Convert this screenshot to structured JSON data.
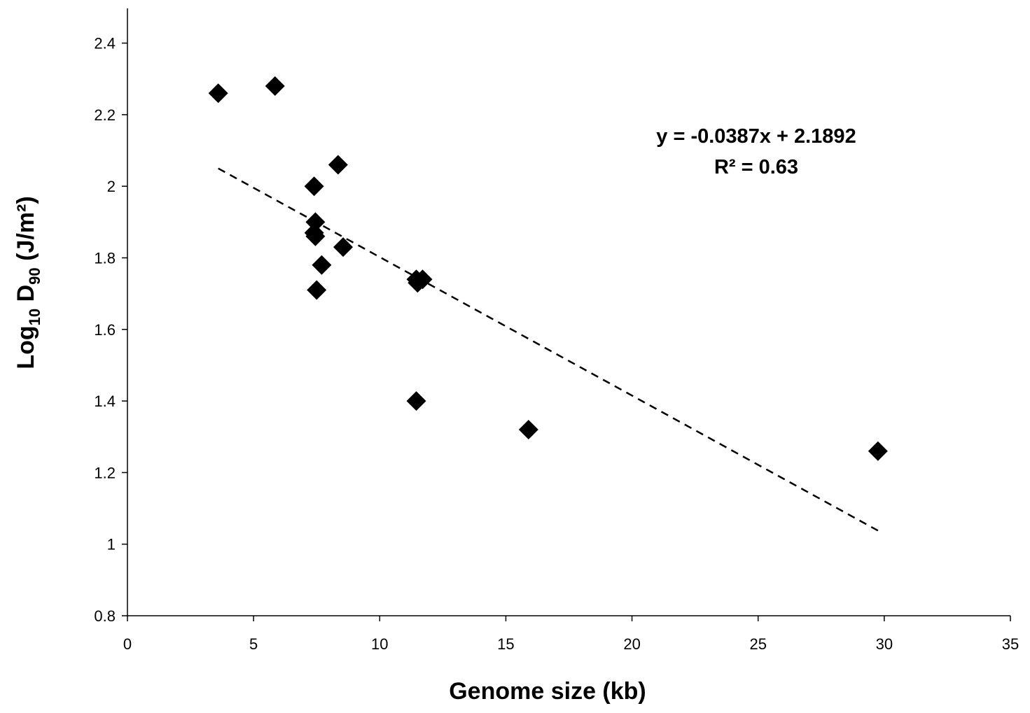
{
  "chart_data": {
    "type": "scatter",
    "xlabel": "Genome size (kb)",
    "ylabel": {
      "main": "Log",
      "main_sub": "10",
      "middle": " D",
      "middle_sub": "90",
      "unit": " (J/m²)"
    },
    "xlim": [
      0,
      35
    ],
    "ylim": [
      0.8,
      2.45
    ],
    "x_ticks": [
      0,
      5,
      10,
      15,
      20,
      25,
      30,
      35
    ],
    "x_tick_labels": [
      "0",
      "5",
      "10",
      "15",
      "20",
      "25",
      "30",
      "35"
    ],
    "y_ticks": [
      0.8,
      1.0,
      1.2,
      1.4,
      1.6,
      1.8,
      2.0,
      2.2,
      2.4
    ],
    "y_tick_labels": [
      "0.8",
      "1",
      "1.2",
      "1.4",
      "1.6",
      "1.8",
      "2",
      "2.2",
      "2.4"
    ],
    "grid": false,
    "marker": "diamond",
    "marker_color": "#000000",
    "series": [
      {
        "points": [
          {
            "x": 3.6,
            "y": 2.26
          },
          {
            "x": 5.85,
            "y": 2.28
          },
          {
            "x": 7.4,
            "y": 2.0
          },
          {
            "x": 8.35,
            "y": 2.06
          },
          {
            "x": 7.45,
            "y": 1.9
          },
          {
            "x": 7.4,
            "y": 1.87
          },
          {
            "x": 7.45,
            "y": 1.86
          },
          {
            "x": 8.55,
            "y": 1.83
          },
          {
            "x": 7.7,
            "y": 1.78
          },
          {
            "x": 7.5,
            "y": 1.71
          },
          {
            "x": 11.45,
            "y": 1.74
          },
          {
            "x": 11.7,
            "y": 1.74
          },
          {
            "x": 11.5,
            "y": 1.73
          },
          {
            "x": 11.45,
            "y": 1.4
          },
          {
            "x": 15.9,
            "y": 1.32
          },
          {
            "x": 29.75,
            "y": 1.26
          }
        ]
      }
    ],
    "trendline": {
      "slope": -0.0387,
      "intercept": 2.1892,
      "x_start": 3.6,
      "x_end": 29.75,
      "style": "dashed",
      "equation_label": "y = -0.0387x + 2.1892",
      "r2_label": "R² = 0.63"
    }
  }
}
